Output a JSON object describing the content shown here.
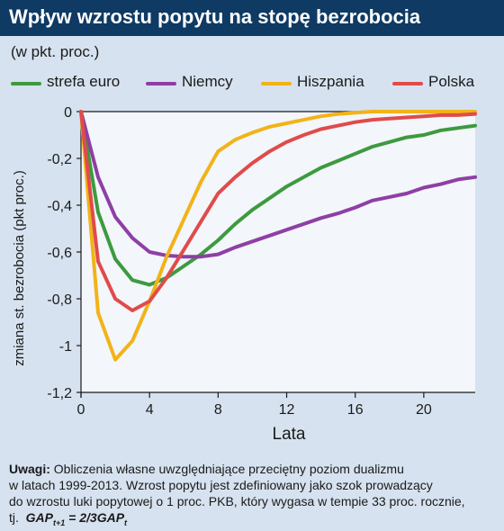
{
  "header": {
    "title": "Wpływ wzrostu popytu na stopę bezrobocia"
  },
  "subtitle": "(w pkt. proc.)",
  "notes": {
    "label": "Uwagi:",
    "line1": "Obliczenia własne uwzględniające przeciętny poziom dualizmu",
    "line2": "w latach 1999-2013. Wzrost popytu jest zdefiniowany jako szok prowadzący",
    "line3": "do wzrostu luki popytowej o 1 proc. PKB, który wygasa w tempie 33 proc. rocznie,",
    "line4": "tj.",
    "formula_lhs": "GAP",
    "formula_lhs_sub": "t+1",
    "formula_mid": " = 2/3GAP",
    "formula_rhs_sub": "t"
  },
  "colors": {
    "background": "#d6e2ef",
    "header": "#0e3a63",
    "plot_area": "#f3f6fa",
    "axis": "#1a1a1a"
  },
  "chart_data": {
    "type": "line",
    "title": "Wpływ wzrostu popytu na stopę bezrobocia",
    "xlabel": "Lata",
    "ylabel": "zmiana st. bezrobocia (pkt proc.)",
    "xlim": [
      0,
      23
    ],
    "ylim": [
      -1.2,
      0
    ],
    "xticks": [
      0,
      4,
      8,
      12,
      16,
      20
    ],
    "xtick_labels": [
      "0",
      "4",
      "8",
      "12",
      "16",
      "20"
    ],
    "yticks": [
      0,
      -0.2,
      -0.4,
      -0.6,
      -0.8,
      -1,
      -1.2
    ],
    "ytick_labels": [
      "0",
      "-0,2",
      "-0,4",
      "-0,6",
      "-0,8",
      "-1",
      "-1,2"
    ],
    "grid": false,
    "legend_position": "top",
    "x": [
      0,
      1,
      2,
      3,
      4,
      5,
      6,
      7,
      8,
      9,
      10,
      11,
      12,
      13,
      14,
      15,
      16,
      17,
      18,
      19,
      20,
      21,
      22,
      23
    ],
    "series": [
      {
        "name": "strefa euro",
        "color": "#3d9a3f",
        "values": [
          0,
          -0.43,
          -0.63,
          -0.72,
          -0.74,
          -0.71,
          -0.66,
          -0.61,
          -0.55,
          -0.48,
          -0.42,
          -0.37,
          -0.32,
          -0.28,
          -0.24,
          -0.21,
          -0.18,
          -0.15,
          -0.13,
          -0.11,
          -0.1,
          -0.08,
          -0.07,
          -0.06
        ]
      },
      {
        "name": "Niemcy",
        "color": "#8e3fa5",
        "values": [
          0,
          -0.28,
          -0.45,
          -0.54,
          -0.6,
          -0.615,
          -0.62,
          -0.62,
          -0.61,
          -0.58,
          -0.555,
          -0.53,
          -0.505,
          -0.48,
          -0.455,
          -0.435,
          -0.41,
          -0.38,
          -0.365,
          -0.35,
          -0.325,
          -0.31,
          -0.29,
          -0.28
        ]
      },
      {
        "name": "Hiszpania",
        "color": "#f2b318",
        "values": [
          0,
          -0.86,
          -1.06,
          -0.98,
          -0.81,
          -0.62,
          -0.46,
          -0.3,
          -0.17,
          -0.12,
          -0.09,
          -0.065,
          -0.05,
          -0.035,
          -0.02,
          -0.01,
          -0.005,
          0,
          0,
          0,
          0,
          0,
          0,
          0
        ]
      },
      {
        "name": "Polska",
        "color": "#e04b4b",
        "values": [
          0,
          -0.64,
          -0.8,
          -0.85,
          -0.81,
          -0.71,
          -0.59,
          -0.47,
          -0.35,
          -0.28,
          -0.22,
          -0.17,
          -0.13,
          -0.1,
          -0.075,
          -0.06,
          -0.045,
          -0.035,
          -0.03,
          -0.025,
          -0.02,
          -0.015,
          -0.015,
          -0.01
        ]
      }
    ]
  }
}
